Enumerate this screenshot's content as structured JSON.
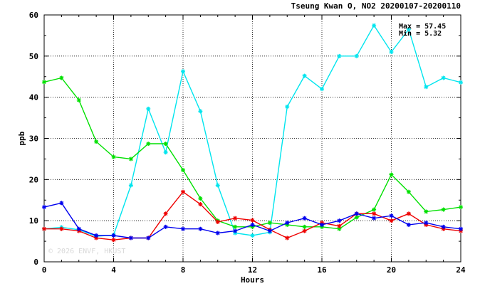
{
  "chart_data": {
    "type": "line",
    "title": "Tseung Kwan O, NO2 20200107-20200110",
    "xlabel": "Hours",
    "ylabel": "ppb",
    "xlim": [
      0,
      24
    ],
    "ylim": [
      0,
      60
    ],
    "xticks": [
      "0",
      "4",
      "8",
      "12",
      "16",
      "20",
      "24"
    ],
    "yticks": [
      "0",
      "10",
      "20",
      "30",
      "40",
      "50",
      "60"
    ],
    "grid": true,
    "x": [
      0,
      1,
      2,
      3,
      4,
      5,
      6,
      7,
      8,
      9,
      10,
      11,
      12,
      13,
      14,
      15,
      16,
      17,
      18,
      19,
      20,
      21,
      22,
      23,
      24
    ],
    "stats": {
      "max_label": "Max = 57.45",
      "min_label": "Min =  5.32"
    },
    "watermark": "© 2026  ENVF, HKUST",
    "series": [
      {
        "color": "#00e5ee",
        "values": [
          8.0,
          8.4,
          7.8,
          6.2,
          6.5,
          18.6,
          37.2,
          26.6,
          46.3,
          36.6,
          18.6,
          7.0,
          6.4,
          7.2,
          37.7,
          45.2,
          42.0,
          50.0,
          50.0,
          57.45,
          51.0,
          56.5,
          42.5,
          44.7,
          43.6
        ]
      },
      {
        "color": "#00e000",
        "values": [
          43.7,
          44.7,
          39.3,
          29.2,
          25.5,
          25.0,
          28.7,
          28.7,
          22.3,
          15.4,
          10.0,
          8.5,
          8.5,
          9.5,
          9.0,
          8.5,
          8.5,
          8.0,
          10.8,
          12.7,
          21.2,
          17.0,
          12.2,
          12.7,
          13.3
        ]
      },
      {
        "color": "#ee0000",
        "values": [
          8.0,
          8.0,
          7.5,
          5.8,
          5.32,
          5.8,
          5.8,
          11.7,
          17.0,
          14.0,
          9.7,
          10.6,
          10.1,
          7.8,
          5.8,
          7.5,
          9.5,
          8.7,
          11.7,
          11.7,
          10.0,
          11.7,
          9.0,
          8.0,
          7.5
        ]
      },
      {
        "color": "#0000ee",
        "values": [
          13.3,
          14.3,
          8.0,
          6.4,
          6.4,
          5.8,
          5.8,
          8.5,
          8.0,
          8.0,
          7.0,
          7.5,
          9.0,
          7.5,
          9.5,
          10.6,
          9.0,
          10.0,
          11.7,
          10.6,
          11.2,
          9.0,
          9.5,
          8.5,
          8.0
        ]
      }
    ]
  }
}
